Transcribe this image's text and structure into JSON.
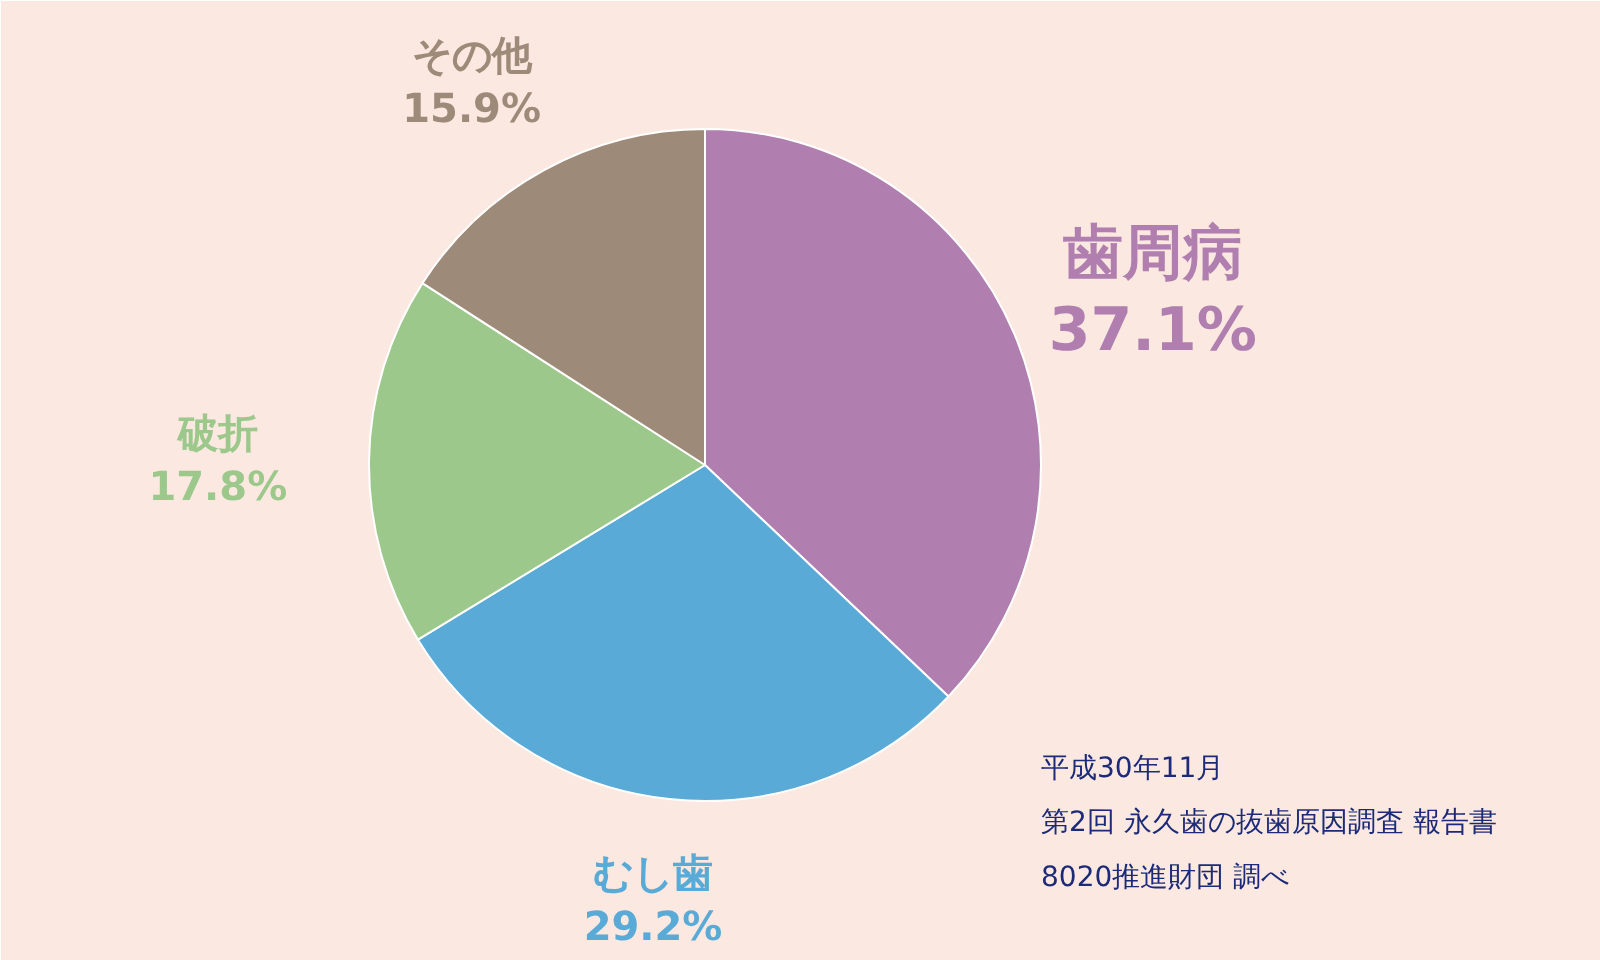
{
  "chart_data": {
    "type": "pie",
    "categories": [
      "歯周病",
      "むし歯",
      "破折",
      "その他"
    ],
    "values": [
      37.1,
      29.2,
      17.8,
      15.9
    ],
    "colors": [
      "#b07fb0",
      "#5aaad8",
      "#9cc88c",
      "#9e8a78"
    ],
    "value_labels": [
      "37.1%",
      "29.2%",
      "17.8%",
      "15.9%"
    ],
    "annotations": [
      "平成30年11月",
      "第2回 永久歯の抜歯原因調査 報告書",
      "8020推進財団 調べ"
    ]
  }
}
